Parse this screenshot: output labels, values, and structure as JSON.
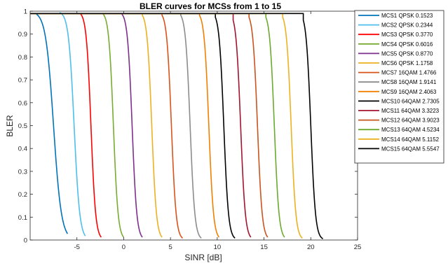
{
  "chart_data": {
    "type": "line",
    "title": "BLER curves for MCSs from 1 to 15",
    "xlabel": "SINR [dB]",
    "ylabel": "BLER",
    "xlim": [
      -10,
      25
    ],
    "ylim": [
      0,
      1
    ],
    "xticks": [
      -5,
      0,
      5,
      10,
      15,
      20,
      25
    ],
    "yticks": [
      0,
      0.1,
      0.2,
      0.3,
      0.4,
      0.5,
      0.6,
      0.7,
      0.8,
      0.9,
      1
    ],
    "grid": false,
    "legend_position": "top-right, outside",
    "series": [
      {
        "name": "MCS1 QPSK 0.1523",
        "color": "#0072BD",
        "start": -9.3,
        "x50": -7.5,
        "width": 0.42,
        "end": -6.0
      },
      {
        "name": "MCS2 QPSK 0.2344",
        "color": "#4DBEEE",
        "start": -6.8,
        "x50": -5.3,
        "width": 0.3,
        "end": -4.1
      },
      {
        "name": "MCS3 QPSK 0.3770",
        "color": "#FF0000",
        "start": -4.6,
        "x50": -3.5,
        "width": 0.25,
        "end": -2.4
      },
      {
        "name": "MCS4 QPSK 0.6016",
        "color": "#77AC30",
        "start": -2.2,
        "x50": -1.1,
        "width": 0.25,
        "end": 0.0
      },
      {
        "name": "MCS5 QPSK 0.8770",
        "color": "#7E2F8E",
        "start": -0.2,
        "x50": 0.9,
        "width": 0.25,
        "end": 2.0
      },
      {
        "name": "MCS6 QPSK 1.1758",
        "color": "#EDB120",
        "start": 2.0,
        "x50": 3.0,
        "width": 0.25,
        "end": 4.1
      },
      {
        "name": "MCS7 16QAM 1.4766",
        "color": "#D95319",
        "start": 4.1,
        "x50": 5.1,
        "width": 0.25,
        "end": 6.3
      },
      {
        "name": "MCS8 16QAM 1.9141",
        "color": "#8C8C8C",
        "start": 6.1,
        "x50": 7.1,
        "width": 0.25,
        "end": 8.3
      },
      {
        "name": "MCS9 16QAM 2.4063",
        "color": "#F08000",
        "start": 8.1,
        "x50": 9.1,
        "width": 0.25,
        "end": 10.2
      },
      {
        "name": "MCS10 64QAM 2.7305",
        "color": "#000000",
        "start": 9.8,
        "x50": 10.7,
        "width": 0.25,
        "end": 11.9
      },
      {
        "name": "MCS11 64QAM 3.3223",
        "color": "#A2142F",
        "start": 11.7,
        "x50": 12.5,
        "width": 0.25,
        "end": 13.6
      },
      {
        "name": "MCS12 64QAM 3.9023",
        "color": "#C8541E",
        "start": 13.4,
        "x50": 14.3,
        "width": 0.25,
        "end": 15.4
      },
      {
        "name": "MCS13 64QAM 4.5234",
        "color": "#6BAA2E",
        "start": 15.2,
        "x50": 16.1,
        "width": 0.25,
        "end": 17.2
      },
      {
        "name": "MCS14 64QAM 5.1152",
        "color": "#EDB120",
        "start": 17.0,
        "x50": 17.9,
        "width": 0.25,
        "end": 19.1
      },
      {
        "name": "MCS15 64QAM 5.5547",
        "color": "#000000",
        "start": 19.2,
        "x50": 20.0,
        "width": 0.25,
        "end": 21.3
      }
    ]
  }
}
